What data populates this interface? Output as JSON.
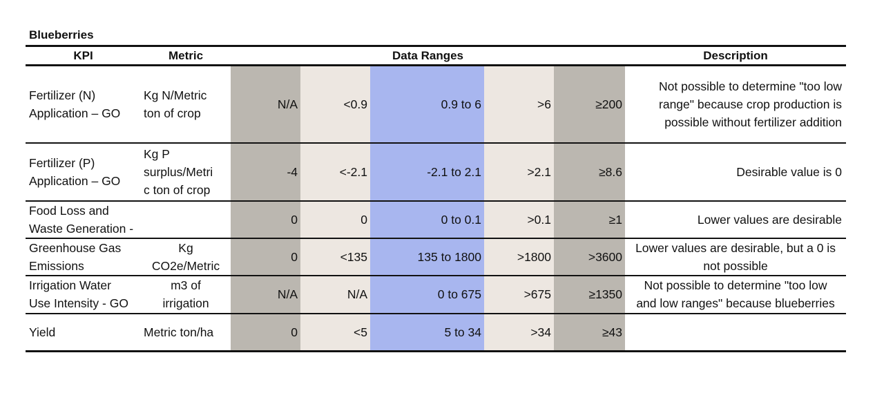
{
  "title": "Blueberries",
  "headers": {
    "kpi": "KPI",
    "metric": "Metric",
    "data_ranges": "Data Ranges",
    "description": "Description"
  },
  "rows": [
    {
      "kpi": [
        "Fertilizer (N)",
        "Application – GO"
      ],
      "metric": [
        "Kg N/Metric",
        "ton of crop"
      ],
      "ranges": [
        "N/A",
        "<0.9",
        "0.9 to 6",
        ">6",
        "≥200"
      ],
      "description": [
        "Not possible to determine \"too low",
        "range\" because crop production is",
        "possible without fertilizer addition"
      ]
    },
    {
      "kpi": [
        "Fertilizer (P)",
        "Application – GO"
      ],
      "metric": [
        "Kg P",
        "surplus/Metri",
        "c ton of crop"
      ],
      "ranges": [
        "-4",
        "<-2.1",
        "-2.1 to 2.1",
        ">2.1",
        "≥8.6"
      ],
      "description": [
        "Desirable value is 0"
      ]
    },
    {
      "kpi": [
        "Food Loss and",
        "Waste Generation -"
      ],
      "metric": [],
      "ranges": [
        "0",
        "0",
        "0 to 0.1",
        ">0.1",
        "≥1"
      ],
      "description": [
        "Lower values are desirable"
      ]
    },
    {
      "kpi": [
        "Greenhouse Gas",
        "Emissions"
      ],
      "metric": [
        "Kg",
        "CO2e/Metric"
      ],
      "ranges": [
        "0",
        "<135",
        "135 to 1800",
        ">1800",
        ">3600"
      ],
      "description": [
        "Lower values are desirable, but a 0 is",
        "not possible"
      ]
    },
    {
      "kpi": [
        "Irrigation Water",
        "Use Intensity - GO"
      ],
      "metric": [
        "m3 of",
        "irrigation"
      ],
      "ranges": [
        "N/A",
        "N/A",
        "0 to 675",
        ">675",
        "≥1350"
      ],
      "description": [
        "Not possible to determine \"too low",
        "and low ranges\" because blueberries"
      ]
    },
    {
      "kpi": [
        "Yield"
      ],
      "metric": [
        "Metric ton/ha"
      ],
      "ranges": [
        "0",
        "<5",
        "5  to 34",
        ">34",
        "≥43"
      ],
      "description": []
    }
  ]
}
